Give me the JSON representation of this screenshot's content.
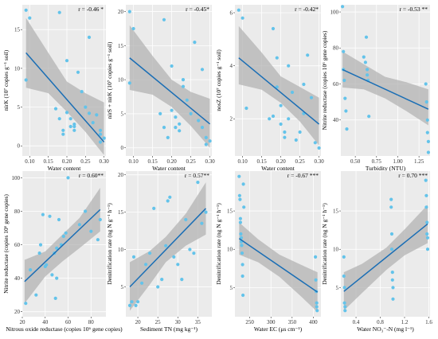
{
  "colors": {
    "panel_bg": "#ebebeb",
    "grid_major": "#ffffff",
    "points": "#63c3ea",
    "fit_line": "#1a6eb5",
    "ci_band": "#b3b3b3"
  },
  "chart_data": [
    {
      "type": "scatter",
      "annotation": "r = -0.46 *",
      "xlabel": "Water content",
      "ylabel": "nirK (10⁷ copies g⁻¹ soil)",
      "xlim": [
        0.08,
        0.305
      ],
      "ylim": [
        -1.3,
        18.2
      ],
      "xticks": [
        0.1,
        0.15,
        0.2,
        0.25,
        0.3
      ],
      "xtick_labels": [
        "0.10",
        "0.15",
        "0.20",
        "0.25",
        "0.30"
      ],
      "yticks": [
        0,
        5,
        10,
        15
      ],
      "ytick_labels": [
        "0",
        "5",
        "10",
        "15"
      ],
      "x": [
        0.09,
        0.1,
        0.09,
        0.17,
        0.18,
        0.18,
        0.19,
        0.19,
        0.2,
        0.2,
        0.21,
        0.21,
        0.22,
        0.22,
        0.22,
        0.23,
        0.24,
        0.25,
        0.26,
        0.26,
        0.27,
        0.28,
        0.29,
        0.29,
        0.3,
        0.29
      ],
      "y": [
        17.5,
        16.5,
        8.5,
        4.8,
        17.2,
        3.5,
        2.0,
        1.5,
        11.0,
        4.3,
        3.5,
        2.5,
        2.5,
        2.0,
        2.8,
        9.5,
        7.0,
        5.0,
        4.2,
        14.0,
        3.0,
        4.0,
        2.0,
        1.5,
        1.0,
        0.5
      ],
      "fit": {
        "x": [
          0.09,
          0.3
        ],
        "y": [
          12.0,
          0.5
        ]
      },
      "band": {
        "x": [
          0.09,
          0.15,
          0.2,
          0.25,
          0.3
        ],
        "lo": [
          7.5,
          6.8,
          4.4,
          1.8,
          -1.2
        ],
        "hi": [
          16.5,
          12.0,
          8.3,
          6.8,
          5.6
        ]
      }
    },
    {
      "type": "scatter",
      "annotation": "r = -0.45*",
      "xlabel": "Water content",
      "ylabel": "nirS + nirK (10⁷ copies g⁻¹ soil)",
      "xlim": [
        0.08,
        0.305
      ],
      "ylim": [
        -1.2,
        21.0
      ],
      "xticks": [
        0.1,
        0.15,
        0.2,
        0.25,
        0.3
      ],
      "xtick_labels": [
        "0.10",
        "0.15",
        "0.20",
        "0.25",
        "0.30"
      ],
      "yticks": [
        0,
        5,
        10,
        15,
        20
      ],
      "ytick_labels": [
        "0",
        "5",
        "10",
        "15",
        "20"
      ],
      "x": [
        0.09,
        0.1,
        0.09,
        0.17,
        0.18,
        0.18,
        0.19,
        0.2,
        0.2,
        0.21,
        0.21,
        0.22,
        0.22,
        0.23,
        0.23,
        0.24,
        0.25,
        0.26,
        0.27,
        0.28,
        0.28,
        0.29,
        0.3,
        0.29
      ],
      "y": [
        20.0,
        17.5,
        9.5,
        5.0,
        18.8,
        3.0,
        1.5,
        12.0,
        5.5,
        4.5,
        3.0,
        2.5,
        3.5,
        10.0,
        9.0,
        7.0,
        5.0,
        15.5,
        4.0,
        11.5,
        3.0,
        1.5,
        1.0,
        0.5
      ],
      "fit": {
        "x": [
          0.09,
          0.3
        ],
        "y": [
          13.2,
          3.5
        ]
      },
      "band": {
        "x": [
          0.09,
          0.15,
          0.2,
          0.25,
          0.3
        ],
        "lo": [
          8.5,
          7.8,
          6.0,
          3.2,
          0.0
        ],
        "hi": [
          18.0,
          13.5,
          10.0,
          8.2,
          7.2
        ]
      }
    },
    {
      "type": "scatter",
      "annotation": "r = -0.42*",
      "xlabel": "Water content",
      "ylabel": "nosZ (10⁷ copies g⁻¹ soil)",
      "xlim": [
        0.08,
        0.305
      ],
      "ylim": [
        0.6,
        6.3
      ],
      "xticks": [
        0.1,
        0.15,
        0.2,
        0.25,
        0.3
      ],
      "xtick_labels": [
        "0.10",
        "0.15",
        "0.20",
        "0.25",
        "0.30"
      ],
      "yticks": [
        2,
        4,
        6
      ],
      "ytick_labels": [
        "2",
        "4",
        "6"
      ],
      "x": [
        0.09,
        0.1,
        0.11,
        0.17,
        0.18,
        0.18,
        0.19,
        0.19,
        0.2,
        0.2,
        0.21,
        0.21,
        0.22,
        0.22,
        0.23,
        0.24,
        0.25,
        0.26,
        0.26,
        0.27,
        0.28,
        0.29,
        0.3
      ],
      "y": [
        6.1,
        5.8,
        2.4,
        2.0,
        5.4,
        2.1,
        3.2,
        4.3,
        2.5,
        1.8,
        1.5,
        1.3,
        4.0,
        2.0,
        3.0,
        1.2,
        1.5,
        3.3,
        2.2,
        4.4,
        2.8,
        1.1,
        0.9
      ],
      "fit": {
        "x": [
          0.09,
          0.3
        ],
        "y": [
          4.3,
          1.8
        ]
      },
      "band": {
        "x": [
          0.09,
          0.15,
          0.2,
          0.25,
          0.3
        ],
        "lo": [
          3.3,
          3.1,
          2.6,
          1.9,
          1.0
        ],
        "hi": [
          5.5,
          4.5,
          3.6,
          3.2,
          2.8
        ]
      }
    },
    {
      "type": "scatter",
      "annotation": "r = -0.53 **",
      "xlabel": "Turbidity (NTU)",
      "ylabel": "Nitrite reductase (copies 10⁶ gene copies)",
      "xlim": [
        0.33,
        1.38
      ],
      "ylim": [
        20,
        104
      ],
      "xticks": [
        0.5,
        0.75,
        1.0,
        1.25
      ],
      "xtick_labels": [
        "0.50",
        "0.75",
        "1.00",
        "1.25"
      ],
      "yticks": [
        40,
        60,
        80,
        100
      ],
      "ytick_labels": [
        "40",
        "60",
        "80",
        "100"
      ],
      "x": [
        0.35,
        0.36,
        0.36,
        0.37,
        0.38,
        0.39,
        0.4,
        0.6,
        0.62,
        0.63,
        0.64,
        0.64,
        0.65,
        0.66,
        1.33,
        1.34,
        1.35,
        1.35,
        1.36,
        1.36
      ],
      "y": [
        103,
        78,
        68,
        62,
        52,
        45,
        35,
        75,
        72,
        86,
        68,
        65,
        62,
        42,
        60,
        50,
        40,
        33,
        28,
        22
      ],
      "fit": {
        "x": [
          0.35,
          1.36
        ],
        "y": [
          68,
          46
        ]
      },
      "band": {
        "x": [
          0.35,
          0.6,
          0.85,
          1.1,
          1.36
        ],
        "lo": [
          58,
          57,
          52,
          45,
          37
        ],
        "hi": [
          78,
          71,
          64,
          61,
          57
        ]
      }
    },
    {
      "type": "scatter",
      "annotation": "r = 0.60**",
      "xlabel": "Nitrous oxide reductase (copies 10⁶ gene copies)",
      "ylabel": "Nitrite reductase (copies 10⁶ gene copies)",
      "xlim": [
        20,
        93
      ],
      "ylim": [
        17,
        104
      ],
      "xticks": [
        20,
        40,
        60,
        80
      ],
      "xtick_labels": [
        "20",
        "40",
        "60",
        "80"
      ],
      "yticks": [
        20,
        40,
        60,
        80,
        100
      ],
      "ytick_labels": [
        "20",
        "40",
        "60",
        "80",
        "100"
      ],
      "x": [
        23,
        27,
        32,
        35,
        36,
        38,
        40,
        41,
        44,
        46,
        48,
        49,
        50,
        50,
        52,
        54,
        56,
        58,
        60,
        70,
        75,
        80,
        86,
        88
      ],
      "y": [
        25,
        45,
        30,
        55,
        60,
        78,
        47,
        48,
        77,
        42,
        55,
        28,
        58,
        40,
        75,
        60,
        65,
        67,
        100,
        72,
        80,
        68,
        63,
        75
      ],
      "fit": {
        "x": [
          22,
          88
        ],
        "y": [
          38,
          81
        ]
      },
      "band": {
        "x": [
          22,
          40,
          55,
          70,
          88
        ],
        "lo": [
          25,
          41,
          50,
          58,
          68
        ],
        "hi": [
          51,
          56,
          66,
          76,
          94
        ]
      }
    },
    {
      "type": "scatter",
      "annotation": "r = 0.57**",
      "xlabel": "Sediment TN (mg kg⁻¹)",
      "ylabel": "Denitrification rate (ng N g⁻¹ h⁻¹)",
      "xlim": [
        17,
        38.5
      ],
      "ylim": [
        1,
        20.5
      ],
      "xticks": [
        20,
        25,
        30,
        35
      ],
      "xtick_labels": [
        "20",
        "25",
        "30",
        "35"
      ],
      "yticks": [
        5,
        10,
        15,
        20
      ],
      "ytick_labels": [
        "5",
        "10",
        "15",
        "20"
      ],
      "x": [
        18,
        18.5,
        19,
        19.5,
        20,
        21,
        22,
        23,
        24,
        25,
        26,
        27,
        27.5,
        28,
        29,
        30,
        31,
        32,
        33,
        34,
        35,
        36,
        37
      ],
      "y": [
        2.5,
        3.0,
        9.0,
        2.5,
        3.0,
        5.5,
        8.0,
        9.5,
        15.5,
        5.0,
        6.0,
        10.5,
        16.5,
        17.0,
        9.0,
        8.0,
        6.0,
        14.0,
        10.0,
        9.5,
        19.0,
        13.5,
        15.0
      ],
      "fit": {
        "x": [
          18,
          37
        ],
        "y": [
          5.0,
          15.5
        ]
      },
      "band": {
        "x": [
          18,
          23,
          27,
          32,
          37
        ],
        "lo": [
          1.8,
          5.3,
          8.3,
          10.5,
          12.0
        ],
        "hi": [
          8.3,
          9.8,
          11.7,
          14.8,
          19.0
        ]
      }
    },
    {
      "type": "scatter",
      "annotation": "r = -0.67 ***",
      "xlabel": "Water EC (μs cm⁻¹)",
      "ylabel": "Denitrification rate (ng N g⁻¹ h⁻¹)",
      "xlim": [
        215,
        418
      ],
      "ylim": [
        1.2,
        20.2
      ],
      "xticks": [
        250,
        300,
        350,
        400
      ],
      "xtick_labels": [
        "250",
        "300",
        "350",
        "400"
      ],
      "yticks": [
        5,
        10,
        15
      ],
      "ytick_labels": [
        "5",
        "10",
        "15"
      ],
      "x": [
        225,
        226,
        227,
        228,
        228,
        229,
        230,
        230,
        231,
        232,
        233,
        233,
        234,
        235,
        236,
        405,
        406,
        407,
        408,
        408,
        409
      ],
      "y": [
        19.5,
        17.0,
        16.5,
        14.0,
        13.5,
        12.0,
        11.5,
        11.0,
        10.5,
        9.5,
        8.0,
        6.5,
        4.0,
        18.5,
        15.5,
        9.0,
        6.0,
        4.5,
        3.0,
        2.5,
        2.0
      ],
      "fit": {
        "x": [
          225,
          410
        ],
        "y": [
          11.4,
          4.4
        ]
      },
      "band": {
        "x": [
          225,
          270,
          320,
          370,
          410
        ],
        "lo": [
          9.3,
          8.3,
          6.4,
          3.9,
          1.8
        ],
        "hi": [
          13.5,
          11.3,
          9.3,
          8.0,
          7.0
        ]
      }
    },
    {
      "type": "scatter",
      "annotation": "r = 0.70 ***",
      "xlabel": "Water NO₃⁻-N (mg l⁻¹)",
      "ylabel": "Denitrification rate (ng N g⁻¹ h⁻¹)",
      "xlim": [
        0.15,
        1.62
      ],
      "ylim": [
        1.2,
        20.2
      ],
      "xticks": [
        0.4,
        0.8,
        1.2,
        1.6
      ],
      "xtick_labels": [
        "0.4",
        "0.8",
        "1.2",
        "1.6"
      ],
      "yticks": [
        5,
        10,
        15
      ],
      "ytick_labels": [
        "5",
        "10",
        "15"
      ],
      "x": [
        0.2,
        0.2,
        0.21,
        0.21,
        0.22,
        0.22,
        0.98,
        0.98,
        0.99,
        0.99,
        1.0,
        1.0,
        1.01,
        1.01,
        1.55,
        1.56,
        1.56,
        1.57,
        1.57,
        1.58,
        1.58
      ],
      "y": [
        9.0,
        6.5,
        5.0,
        3.0,
        2.5,
        2.0,
        16.5,
        15.5,
        12.0,
        10.0,
        7.0,
        6.0,
        5.0,
        3.5,
        19.0,
        17.0,
        15.5,
        13.5,
        12.0,
        11.5,
        10.0
      ],
      "fit": {
        "x": [
          0.2,
          1.58
        ],
        "y": [
          4.5,
          13.3
        ]
      },
      "band": {
        "x": [
          0.2,
          0.5,
          0.9,
          1.2,
          1.58
        ],
        "lo": [
          2.0,
          4.3,
          7.3,
          9.2,
          10.8
        ],
        "hi": [
          7.0,
          8.1,
          10.2,
          12.6,
          15.8
        ]
      }
    }
  ]
}
